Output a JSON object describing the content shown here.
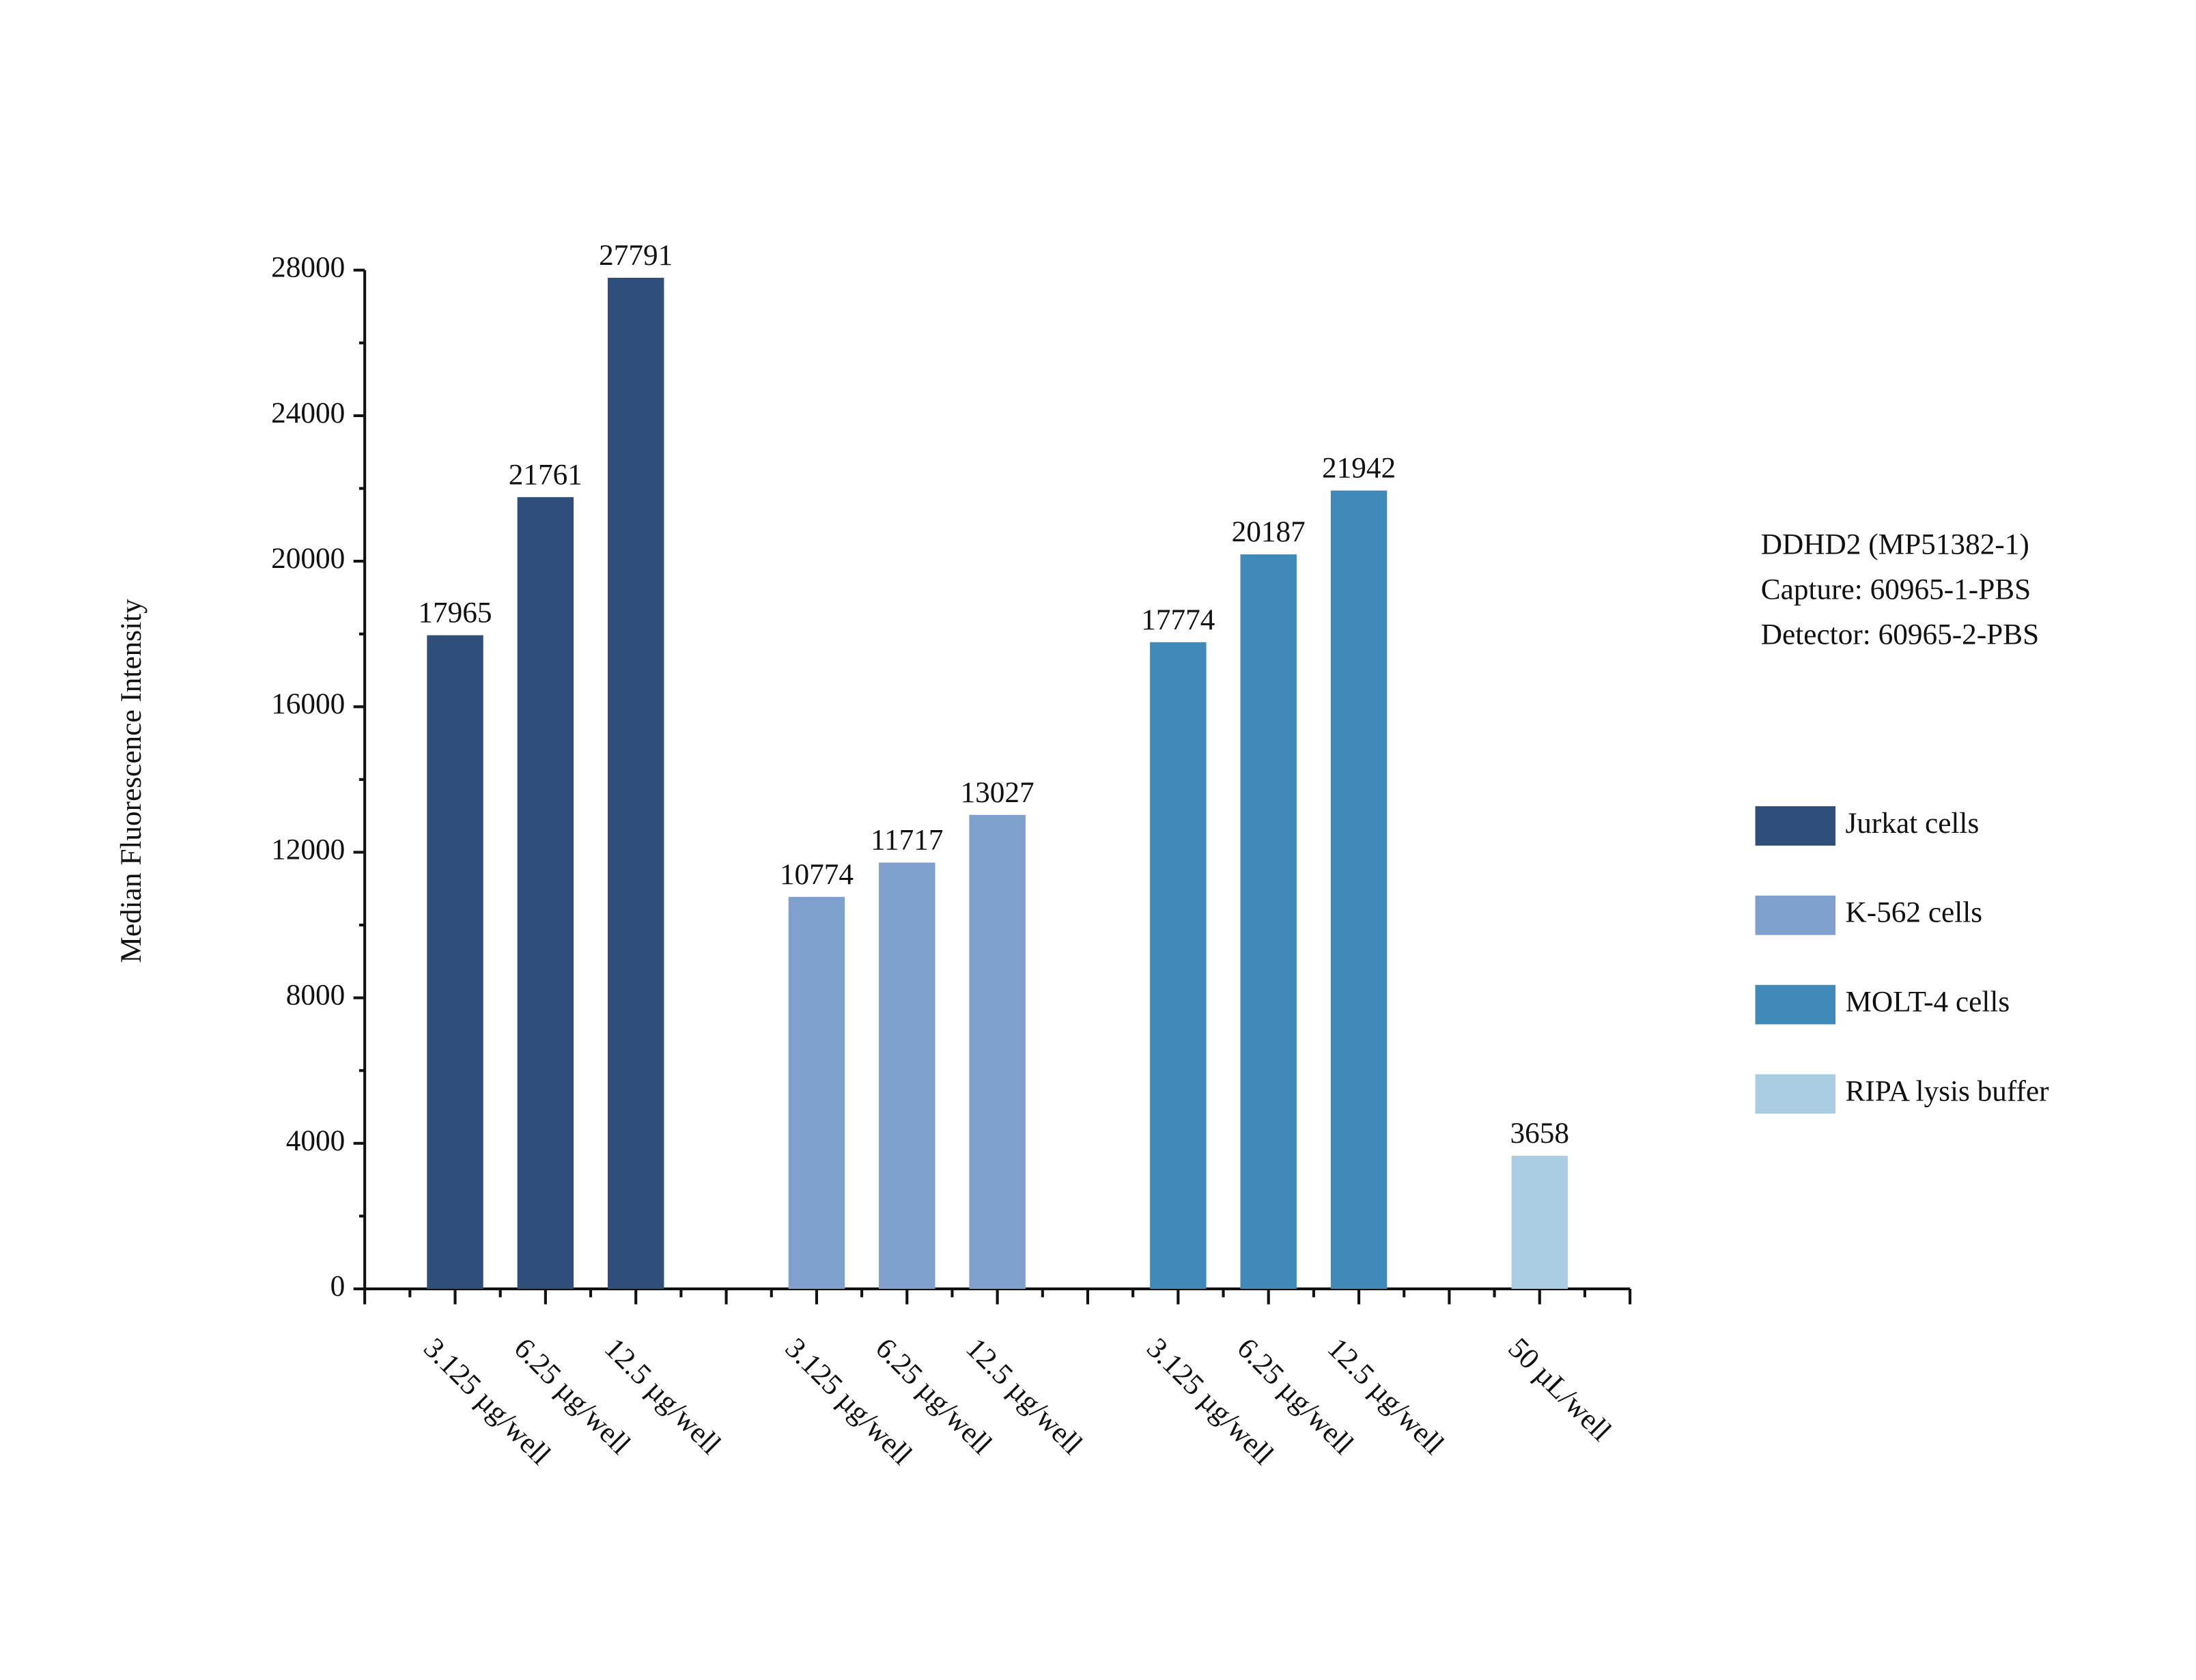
{
  "chart_data": {
    "type": "bar",
    "y_label": "Median Fluorescence Intensity",
    "annotation": [
      "DDHD2 (MP51382-1)",
      "Capture: 60965-1-PBS",
      "Detector: 60965-2-PBS"
    ],
    "categories": [
      "3.125 µg/well",
      "6.25 µg/well",
      "12.5 µg/well",
      null,
      "3.125 µg/well",
      "6.25 µg/well",
      "12.5 µg/well",
      null,
      "3.125 µg/well",
      "6.25 µg/well",
      "12.5 µg/well",
      null,
      "50 µL/well"
    ],
    "series": [
      {
        "name": "Jurkat cells",
        "color": "#2f4e7a",
        "values": [
          17965,
          21761,
          27791,
          null,
          null,
          null,
          null,
          null,
          null,
          null,
          null,
          null,
          null
        ]
      },
      {
        "name": "K-562 cells",
        "color": "#7f9fcd",
        "values": [
          null,
          null,
          null,
          null,
          10774,
          11717,
          13027,
          null,
          null,
          null,
          null,
          null,
          null
        ]
      },
      {
        "name": "MOLT-4 cells",
        "color": "#3f8ab9",
        "values": [
          null,
          null,
          null,
          null,
          null,
          null,
          null,
          null,
          17774,
          20187,
          21942,
          null,
          null
        ]
      },
      {
        "name": "RIPA lysis buffer",
        "color": "#aacde2",
        "values": [
          null,
          null,
          null,
          null,
          null,
          null,
          null,
          null,
          null,
          null,
          null,
          null,
          3658
        ]
      }
    ],
    "ylim": [
      0,
      28000
    ],
    "yticks": [
      0,
      4000,
      8000,
      12000,
      16000,
      20000,
      24000,
      28000
    ],
    "legend": "right"
  }
}
